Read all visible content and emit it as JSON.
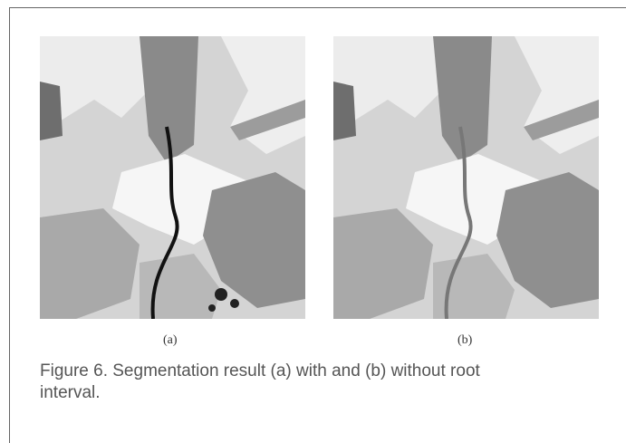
{
  "figure": {
    "panels": [
      {
        "label": "(a)"
      },
      {
        "label": "(b)"
      }
    ],
    "caption": "Figure 6. Segmentation result (a) with and (b) without root interval."
  }
}
